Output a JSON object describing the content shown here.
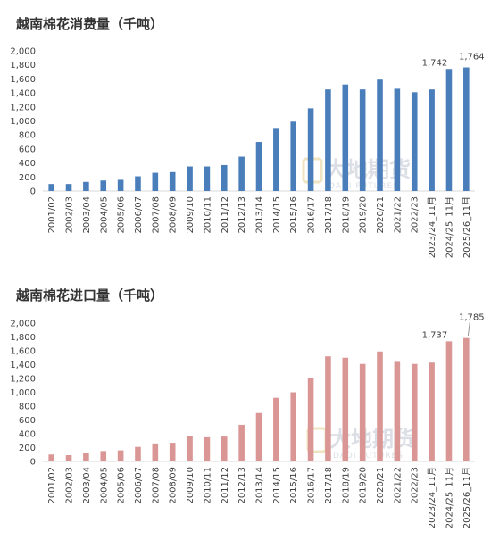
{
  "chart_data": [
    {
      "type": "bar",
      "title": "越南棉花消费量（千吨）",
      "categories": [
        "2001/02",
        "2002/03",
        "2003/04",
        "2004/05",
        "2005/06",
        "2006/07",
        "2007/08",
        "2008/09",
        "2009/10",
        "2010/11",
        "2011/12",
        "2012/13",
        "2013/14",
        "2014/15",
        "2015/16",
        "2016/17",
        "2017/18",
        "2018/19",
        "2019/20",
        "2020/21",
        "2021/22",
        "2022/23",
        "2023/24_11月",
        "2024/25_11月",
        "2025/26_11月"
      ],
      "values": [
        100,
        100,
        130,
        150,
        160,
        210,
        260,
        270,
        350,
        350,
        370,
        490,
        700,
        900,
        990,
        1180,
        1450,
        1520,
        1450,
        1590,
        1460,
        1410,
        1450,
        1742,
        1764
      ],
      "data_labels": [
        {
          "index": 23,
          "text": "1,742"
        },
        {
          "index": 24,
          "text": "1,764"
        }
      ],
      "yticks": [
        "0",
        "200",
        "400",
        "600",
        "800",
        "1,000",
        "1,200",
        "1,400",
        "1,600",
        "1,800",
        "2,000"
      ],
      "ylim": [
        0,
        2000
      ],
      "color": "#4a7ebb",
      "grid": false
    },
    {
      "type": "bar",
      "title": "越南棉花进口量（千吨）",
      "categories": [
        "2001/02",
        "2002/03",
        "2003/04",
        "2004/05",
        "2005/06",
        "2006/07",
        "2007/08",
        "2008/09",
        "2009/10",
        "2010/11",
        "2011/12",
        "2012/13",
        "2013/14",
        "2014/15",
        "2015/16",
        "2016/17",
        "2017/18",
        "2018/19",
        "2019/20",
        "2020/21",
        "2021/22",
        "2022/23",
        "2023/24_11月",
        "2024/25_11月",
        "2025/26_11月"
      ],
      "values": [
        100,
        90,
        120,
        150,
        160,
        210,
        260,
        270,
        370,
        350,
        360,
        530,
        700,
        920,
        1000,
        1200,
        1520,
        1500,
        1410,
        1590,
        1440,
        1410,
        1430,
        1737,
        1785
      ],
      "data_labels": [
        {
          "index": 23,
          "text": "1,737"
        },
        {
          "index": 24,
          "text": "1,785"
        }
      ],
      "yticks": [
        "0",
        "200",
        "400",
        "600",
        "800",
        "1,000",
        "1,200",
        "1,400",
        "1,600",
        "1,800",
        "2,000"
      ],
      "ylim": [
        0,
        2000
      ],
      "color": "#d99694",
      "grid": false
    }
  ],
  "watermark": {
    "main": "大地期货",
    "sub": "DADI FUTURES"
  }
}
